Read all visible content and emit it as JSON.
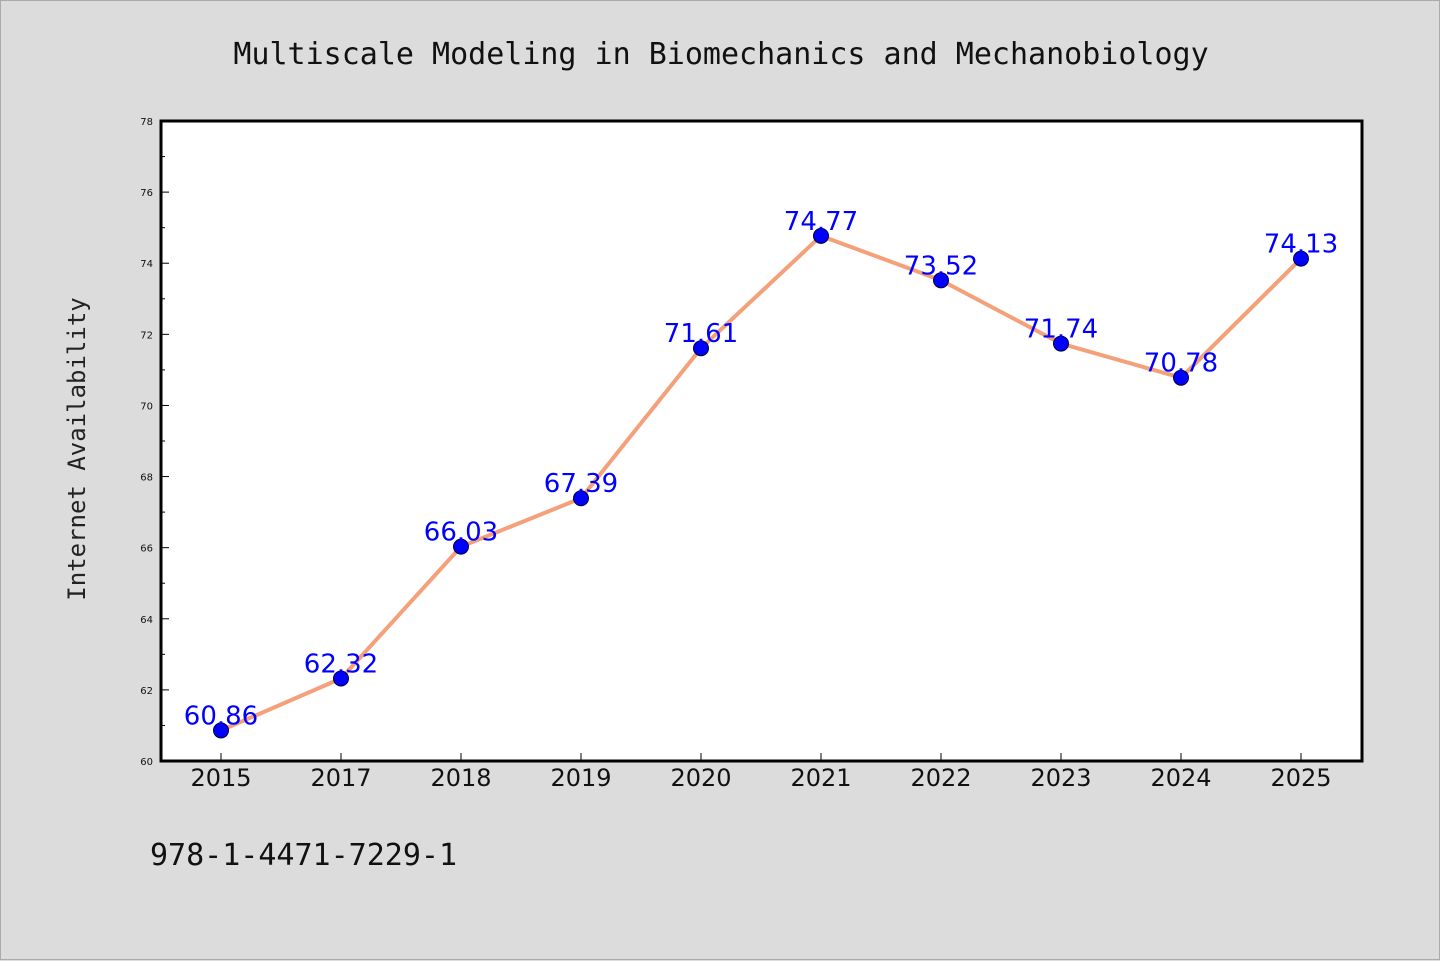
{
  "chart_data": {
    "type": "line",
    "title": "Multiscale Modeling in Biomechanics and Mechanobiology",
    "xlabel": "",
    "ylabel": "Internet Availability",
    "categories": [
      "2015",
      "2017",
      "2018",
      "2019",
      "2020",
      "2021",
      "2022",
      "2023",
      "2024",
      "2025"
    ],
    "series": [
      {
        "values": [
          60.86,
          62.32,
          66.03,
          67.39,
          71.61,
          74.77,
          73.52,
          71.74,
          70.78,
          74.13
        ]
      }
    ],
    "data_labels": [
      "60.86",
      "62.32",
      "66.03",
      "67.39",
      "71.61",
      "74.77",
      "73.52",
      "71.74",
      "70.78",
      "74.13"
    ],
    "ylim": [
      60,
      78
    ],
    "yticks": [
      60,
      62,
      64,
      66,
      68,
      70,
      72,
      74,
      76,
      78
    ],
    "grid": false,
    "legend": "none",
    "colors": {
      "line": "#f4a07a",
      "marker": "#0000ff",
      "data_label": "#0000ff",
      "plot_background": "#ffffff",
      "figure_background": "#dcdcdc"
    }
  },
  "footer_text": "978-1-4471-7229-1"
}
